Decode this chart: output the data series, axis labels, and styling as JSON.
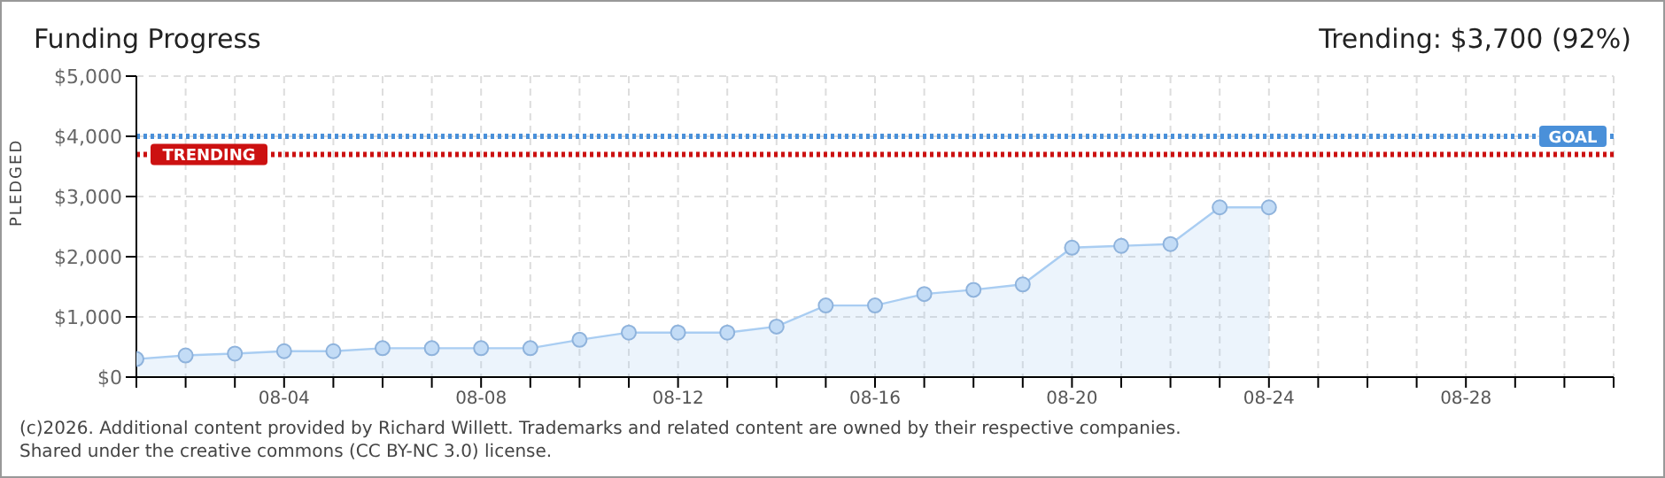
{
  "chart_data": {
    "type": "area",
    "title": "Funding Progress",
    "ylabel": "PLEDGED",
    "x": [
      "--08-01",
      "--08-02",
      "--08-03",
      "--08-04",
      "--08-05",
      "--08-06",
      "--08-07",
      "--08-08",
      "--08-09",
      "--08-10",
      "--08-11",
      "--08-12",
      "--08-13",
      "--08-14",
      "--08-15",
      "--08-16",
      "--08-17",
      "--08-18",
      "--08-19",
      "--08-20",
      "--08-21",
      "--08-22",
      "--08-23",
      "--08-24"
    ],
    "series": [
      {
        "color": "#a9cdf2",
        "values": [
          300,
          360,
          390,
          430,
          430,
          480,
          480,
          480,
          480,
          620,
          740,
          740,
          740,
          840,
          1190,
          1190,
          1380,
          1450,
          1540,
          2150,
          2180,
          2210,
          2820,
          2820
        ]
      }
    ],
    "xlim": [
      "--08-01",
      "--08-31"
    ],
    "xticks": [
      {
        "value": "--08-01",
        "label": null
      },
      {
        "value": "--08-02",
        "label": null
      },
      {
        "value": "--08-03",
        "label": null
      },
      {
        "value": "--08-04",
        "label": "08-04"
      },
      {
        "value": "--08-05",
        "label": null
      },
      {
        "value": "--08-06",
        "label": null
      },
      {
        "value": "--08-07",
        "label": null
      },
      {
        "value": "--08-08",
        "label": "08-08"
      },
      {
        "value": "--08-09",
        "label": null
      },
      {
        "value": "--08-10",
        "label": null
      },
      {
        "value": "--08-11",
        "label": null
      },
      {
        "value": "--08-12",
        "label": "08-12"
      },
      {
        "value": "--08-13",
        "label": null
      },
      {
        "value": "--08-14",
        "label": null
      },
      {
        "value": "--08-15",
        "label": null
      },
      {
        "value": "--08-16",
        "label": "08-16"
      },
      {
        "value": "--08-17",
        "label": null
      },
      {
        "value": "--08-18",
        "label": null
      },
      {
        "value": "--08-19",
        "label": null
      },
      {
        "value": "--08-20",
        "label": "08-20"
      },
      {
        "value": "--08-21",
        "label": null
      },
      {
        "value": "--08-22",
        "label": null
      },
      {
        "value": "--08-23",
        "label": null
      },
      {
        "value": "--08-24",
        "label": "08-24"
      },
      {
        "value": "--08-25",
        "label": null
      },
      {
        "value": "--08-26",
        "label": null
      },
      {
        "value": "--08-27",
        "label": null
      },
      {
        "value": "--08-28",
        "label": "08-28"
      },
      {
        "value": "--08-29",
        "label": null
      },
      {
        "value": "--08-30",
        "label": null
      },
      {
        "value": "--08-31",
        "label": null
      }
    ],
    "ylim": [
      0,
      5000
    ],
    "yticks": [
      {
        "value": 0,
        "label": "$0"
      },
      {
        "value": 1000,
        "label": "$1,000"
      },
      {
        "value": 2000,
        "label": "$2,000"
      },
      {
        "value": 3000,
        "label": "$3,000"
      },
      {
        "value": 4000,
        "label": "$4,000"
      },
      {
        "value": 5000,
        "label": "$5,000"
      }
    ],
    "ref_lines": [
      {
        "axis": "y",
        "value": 4000,
        "label": "GOAL",
        "color": "#4a90d9",
        "line_style": "dotted"
      },
      {
        "axis": "y",
        "value": 3700,
        "label": "TRENDING",
        "color": "#cc1111",
        "line_style": "dotted"
      }
    ],
    "annotations": [
      "Trending: $3,700 (92%)",
      "(c)2026. Additional content provided by Richard Willett. Trademarks and related content are owned by their respective companies.",
      "Shared under the creative commons (CC BY-NC 3.0) license."
    ],
    "grid": true,
    "marker": "circle"
  }
}
